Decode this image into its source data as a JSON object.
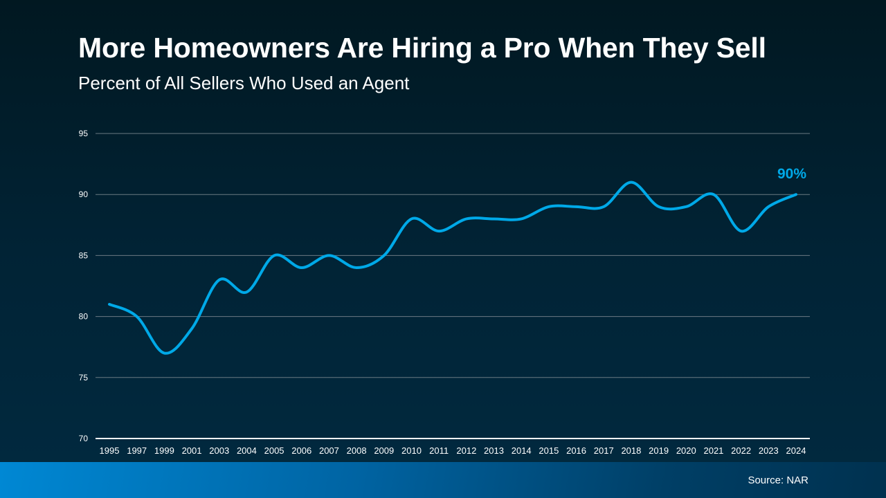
{
  "title": "More Homeowners Are Hiring a Pro When They Sell",
  "subtitle": "Percent of All Sellers Who Used an Agent",
  "source": "Source: NAR",
  "chart_data": {
    "type": "line",
    "title": "More Homeowners Are Hiring a Pro When They Sell",
    "subtitle": "Percent of All Sellers Who Used an Agent",
    "categories": [
      "1995",
      "1997",
      "1999",
      "2001",
      "2003",
      "2004",
      "2005",
      "2006",
      "2007",
      "2008",
      "2009",
      "2010",
      "2011",
      "2012",
      "2013",
      "2014",
      "2015",
      "2016",
      "2017",
      "2018",
      "2019",
      "2020",
      "2021",
      "2022",
      "2023",
      "2024"
    ],
    "values": [
      81,
      80,
      77,
      79,
      83,
      82,
      85,
      84,
      85,
      84,
      85,
      88,
      87,
      88,
      88,
      88,
      89,
      89,
      89,
      91,
      89,
      89,
      90,
      87,
      89,
      90
    ],
    "ylim": [
      70,
      95
    ],
    "yticks": [
      "70",
      "75",
      "80",
      "85",
      "90",
      "95"
    ],
    "grid": true,
    "smooth": true,
    "end_label": "90%",
    "line_color": "#00a9e8"
  }
}
